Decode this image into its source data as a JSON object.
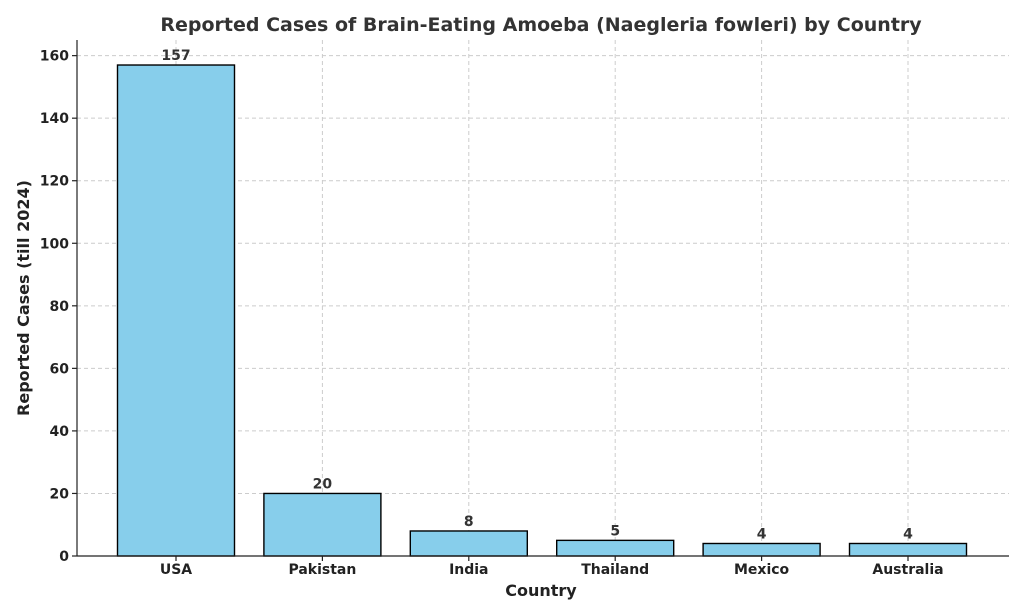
{
  "chart_data": {
    "type": "bar",
    "title": "Reported Cases of Brain-Eating Amoeba (Naegleria fowleri) by Country",
    "xlabel": "Country",
    "ylabel": "Reported Cases (till 2024)",
    "categories": [
      "USA",
      "Pakistan",
      "India",
      "Thailand",
      "Mexico",
      "Australia"
    ],
    "values": [
      157,
      20,
      8,
      5,
      4,
      4
    ],
    "data_labels": [
      "157",
      "20",
      "8",
      "5",
      "4",
      "4"
    ],
    "ylim": [
      0,
      165
    ],
    "yticks": [
      0,
      20,
      40,
      60,
      80,
      100,
      120,
      140,
      160
    ],
    "grid": true,
    "bar_color": "#87CEEB",
    "bar_edge_color": "#000000"
  }
}
